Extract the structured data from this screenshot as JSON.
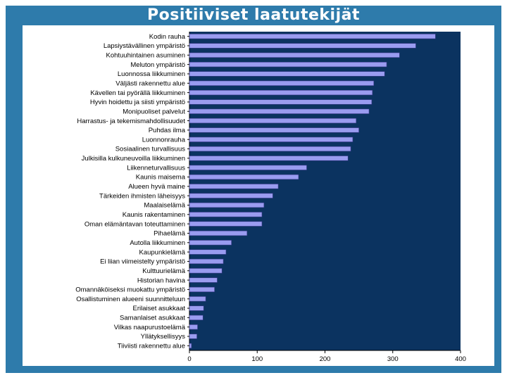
{
  "slide": {
    "title": "Positiiviset laatutekijät",
    "colors": {
      "slide_background": "#2e7bab",
      "plot_background": "#0b3360",
      "bar_fill": "#9a9cf0",
      "bar_stroke": "#3a3a8a"
    }
  },
  "chart_data": {
    "type": "bar",
    "orientation": "horizontal",
    "title": "",
    "xlabel": "",
    "ylabel": "",
    "xlim": [
      0,
      400
    ],
    "x_ticks": [
      0,
      100,
      200,
      300,
      400
    ],
    "grid": false,
    "legend": "none",
    "categories": [
      "Kodin rauha",
      "Lapsiystävällinen ympäristö",
      "Kohtuuhintainen asuminen",
      "Meluton ympäristö",
      "Luonnossa liikkuminen",
      "Väljästi rakennettu alue",
      "Kävellen tai pyörällä liikkuminen",
      "Hyvin hoidettu ja siisti ympäristö",
      "Monipuoliset palvelut",
      "Harrastus- ja tekemismahdollisuudet",
      "Puhdas ilma",
      "Luonnonrauha",
      "Sosiaalinen turvallisuus",
      "Julkisilla kulkuneuvoilla liikkuminen",
      "Liikenneturvallisuus",
      "Kaunis maisema",
      "Alueen hyvä maine",
      "Tärkeiden ihmisten läheisyys",
      "Maalaiselämä",
      "Kaunis rakentaminen",
      "Oman elämäntavan toteuttaminen",
      "Pihaelämä",
      "Autolla liikkuminen",
      "Kaupunkielämä",
      "Ei liian viimeistelty ympäristö",
      "Kulttuurielämä",
      "Historian havina",
      "Omannäköiseksi muokattu ympäristö",
      "Osallistuminen alueeni suunnitteluun",
      "Erilaiset asukkaat",
      "Samanlaiset asukkaat",
      "Vilkas naapurustoelämä",
      "Yllätyksellisyys",
      "Tiiviisti rakennettu alue"
    ],
    "values": [
      363,
      334,
      310,
      291,
      288,
      272,
      270,
      269,
      265,
      246,
      250,
      241,
      238,
      234,
      173,
      161,
      131,
      123,
      110,
      107,
      107,
      85,
      62,
      54,
      50,
      48,
      41,
      37,
      24,
      21,
      20,
      12,
      11,
      3
    ]
  }
}
